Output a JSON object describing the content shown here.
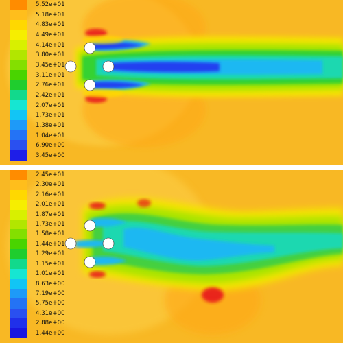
{
  "top_panel": {
    "legend_ticks": [
      "5.52e+01",
      "5.18e+01",
      "4.83e+01",
      "4.49e+01",
      "4.14e+01",
      "3.80e+01",
      "3.45e+01",
      "3.11e+01",
      "2.76e+01",
      "2.42e+01",
      "2.07e+01",
      "1.73e+01",
      "1.38e+01",
      "1.04e+01",
      "6.90e+00",
      "3.45e+00"
    ],
    "legend_colors": [
      "#ff8c00",
      "#ffbe1c",
      "#ffd800",
      "#f6ee00",
      "#d8f000",
      "#b2e600",
      "#84df00",
      "#49d400",
      "#1fcd2e",
      "#12d98c",
      "#16e6d2",
      "#12c5f5",
      "#1e9af8",
      "#2473f5",
      "#2a50f0",
      "#1e1ee8"
    ]
  },
  "bottom_panel": {
    "legend_ticks": [
      "2.45e+01",
      "2.30e+01",
      "2.16e+01",
      "2.01e+01",
      "1.87e+01",
      "1.73e+01",
      "1.58e+01",
      "1.44e+01",
      "1.29e+01",
      "1.15e+01",
      "1.01e+01",
      "8.63e+00",
      "7.19e+00",
      "5.75e+00",
      "4.31e+00",
      "2.88e+00",
      "1.44e+00"
    ],
    "legend_colors": [
      "#ff8c00",
      "#ffbe1c",
      "#ffd800",
      "#f6ee00",
      "#d8f000",
      "#b2e600",
      "#84df00",
      "#49d400",
      "#1fcd2e",
      "#12d98c",
      "#16e6d2",
      "#12c5f5",
      "#1e9af8",
      "#2473f5",
      "#2a50f0",
      "#2030ea",
      "#1a16e0"
    ]
  },
  "colors": {
    "background_field": "#f8b824",
    "wake_green": "#4fd45a",
    "wake_cyan": "#18d8e4",
    "wake_blue": "#1e3cf0",
    "hot_red": "#e8141c",
    "cylinder": "#ffffff"
  }
}
